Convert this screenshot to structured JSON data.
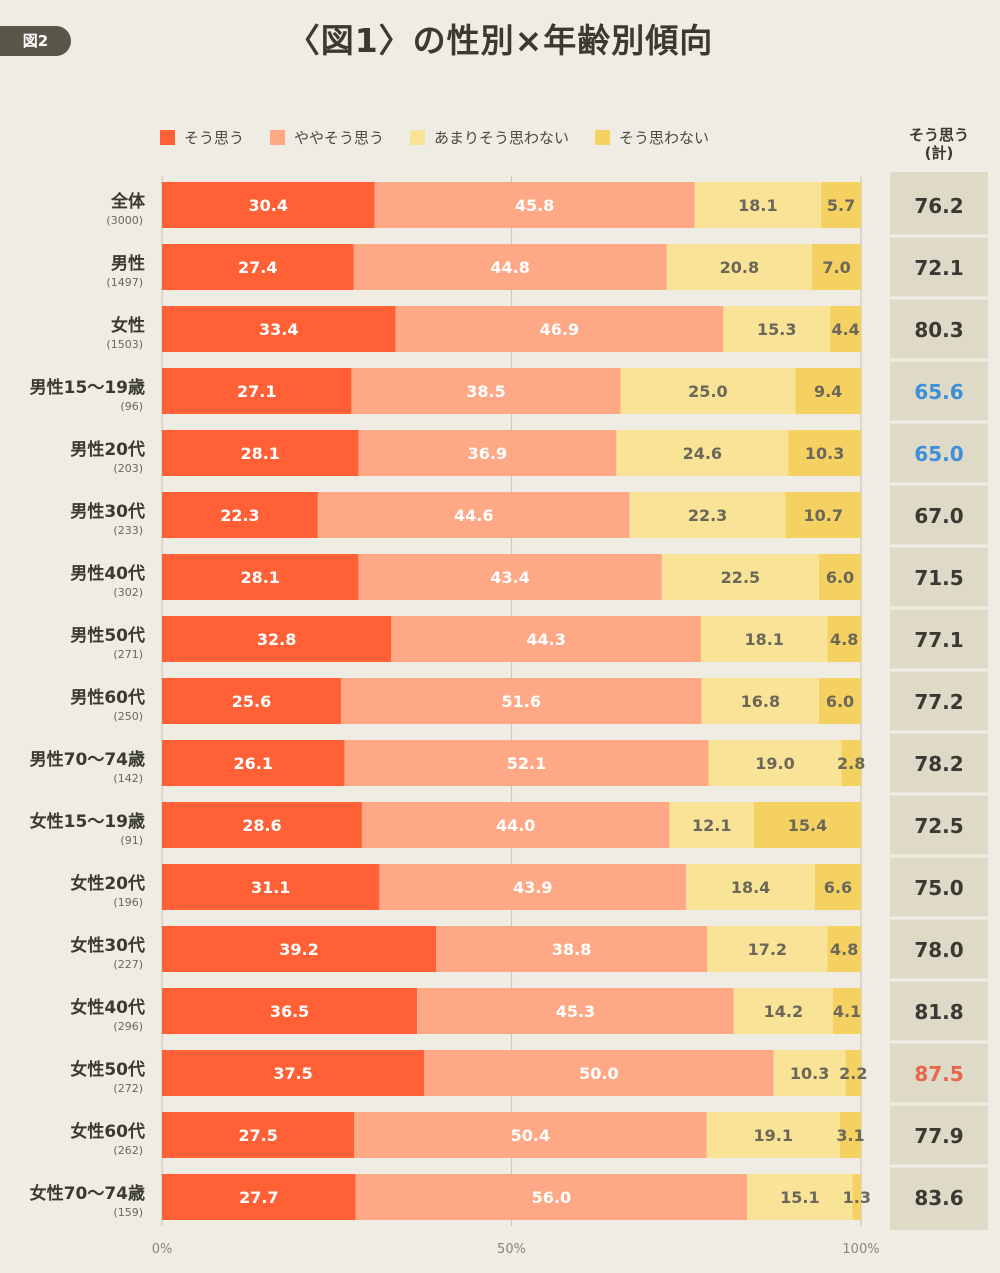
{
  "badge": "図2",
  "title": "〈図1〉の性別×年齢別傾向",
  "total_header_line1": "そう思う",
  "total_header_line2": "(計)",
  "colors": {
    "s1": "#ff6036",
    "s2": "#ffa886",
    "s3": "#f8e396",
    "s4": "#f5d162",
    "total_bg": "#dedac7",
    "total_text": "#3a3a33",
    "total_low": "#3d8fd9",
    "total_high": "#e8664a"
  },
  "chart_data": {
    "type": "bar",
    "orientation": "horizontal",
    "stacked": true,
    "title": "〈図1〉の性別×年齢別傾向",
    "xlim": [
      0,
      100
    ],
    "x_ticks": [
      "0%",
      "50%",
      "100%"
    ],
    "categories": [
      {
        "label": "全体",
        "n": "(3000)"
      },
      {
        "label": "男性",
        "n": "(1497)"
      },
      {
        "label": "女性",
        "n": "(1503)"
      },
      {
        "label": "男性15〜19歳",
        "n": "(96)"
      },
      {
        "label": "男性20代",
        "n": "(203)"
      },
      {
        "label": "男性30代",
        "n": "(233)"
      },
      {
        "label": "男性40代",
        "n": "(302)"
      },
      {
        "label": "男性50代",
        "n": "(271)"
      },
      {
        "label": "男性60代",
        "n": "(250)"
      },
      {
        "label": "男性70〜74歳",
        "n": "(142)"
      },
      {
        "label": "女性15〜19歳",
        "n": "(91)"
      },
      {
        "label": "女性20代",
        "n": "(196)"
      },
      {
        "label": "女性30代",
        "n": "(227)"
      },
      {
        "label": "女性40代",
        "n": "(296)"
      },
      {
        "label": "女性50代",
        "n": "(272)"
      },
      {
        "label": "女性60代",
        "n": "(262)"
      },
      {
        "label": "女性70〜74歳",
        "n": "(159)"
      }
    ],
    "series": [
      {
        "name": "そう思う",
        "color": "#ff6036",
        "label_color": "#ffffff",
        "values": [
          "30.4",
          "27.4",
          "33.4",
          "27.1",
          "28.1",
          "22.3",
          "28.1",
          "32.8",
          "25.6",
          "26.1",
          "28.6",
          "31.1",
          "39.2",
          "36.5",
          "37.5",
          "27.5",
          "27.7"
        ]
      },
      {
        "name": "ややそう思う",
        "color": "#ffa886",
        "label_color": "#ffffff",
        "values": [
          "45.8",
          "44.8",
          "46.9",
          "38.5",
          "36.9",
          "44.6",
          "43.4",
          "44.3",
          "51.6",
          "52.1",
          "44.0",
          "43.9",
          "38.8",
          "45.3",
          "50.0",
          "50.4",
          "56.0"
        ]
      },
      {
        "name": "あまりそう思わない",
        "color": "#f8e396",
        "label_color": "#6b6859",
        "values": [
          "18.1",
          "20.8",
          "15.3",
          "25.0",
          "24.6",
          "22.3",
          "22.5",
          "18.1",
          "16.8",
          "19.0",
          "12.1",
          "18.4",
          "17.2",
          "14.2",
          "10.3",
          "19.1",
          "15.1"
        ]
      },
      {
        "name": "そう思わない",
        "color": "#f5d162",
        "label_color": "#6b6859",
        "values": [
          "5.7",
          "7.0",
          "4.4",
          "9.4",
          "10.3",
          "10.7",
          "6.0",
          "4.8",
          "6.0",
          "2.8",
          "15.4",
          "6.6",
          "4.8",
          "4.1",
          "2.2",
          "3.1",
          "1.3"
        ]
      }
    ],
    "totals": {
      "name": "そう思う(計)",
      "values": [
        "76.2",
        "72.1",
        "80.3",
        "65.6",
        "65.0",
        "67.0",
        "71.5",
        "77.1",
        "77.2",
        "78.2",
        "72.5",
        "75.0",
        "78.0",
        "81.8",
        "87.5",
        "77.9",
        "83.6"
      ],
      "highlight": [
        "normal",
        "normal",
        "normal",
        "low",
        "low",
        "normal",
        "normal",
        "normal",
        "normal",
        "normal",
        "normal",
        "normal",
        "normal",
        "normal",
        "high",
        "normal",
        "normal"
      ]
    }
  }
}
